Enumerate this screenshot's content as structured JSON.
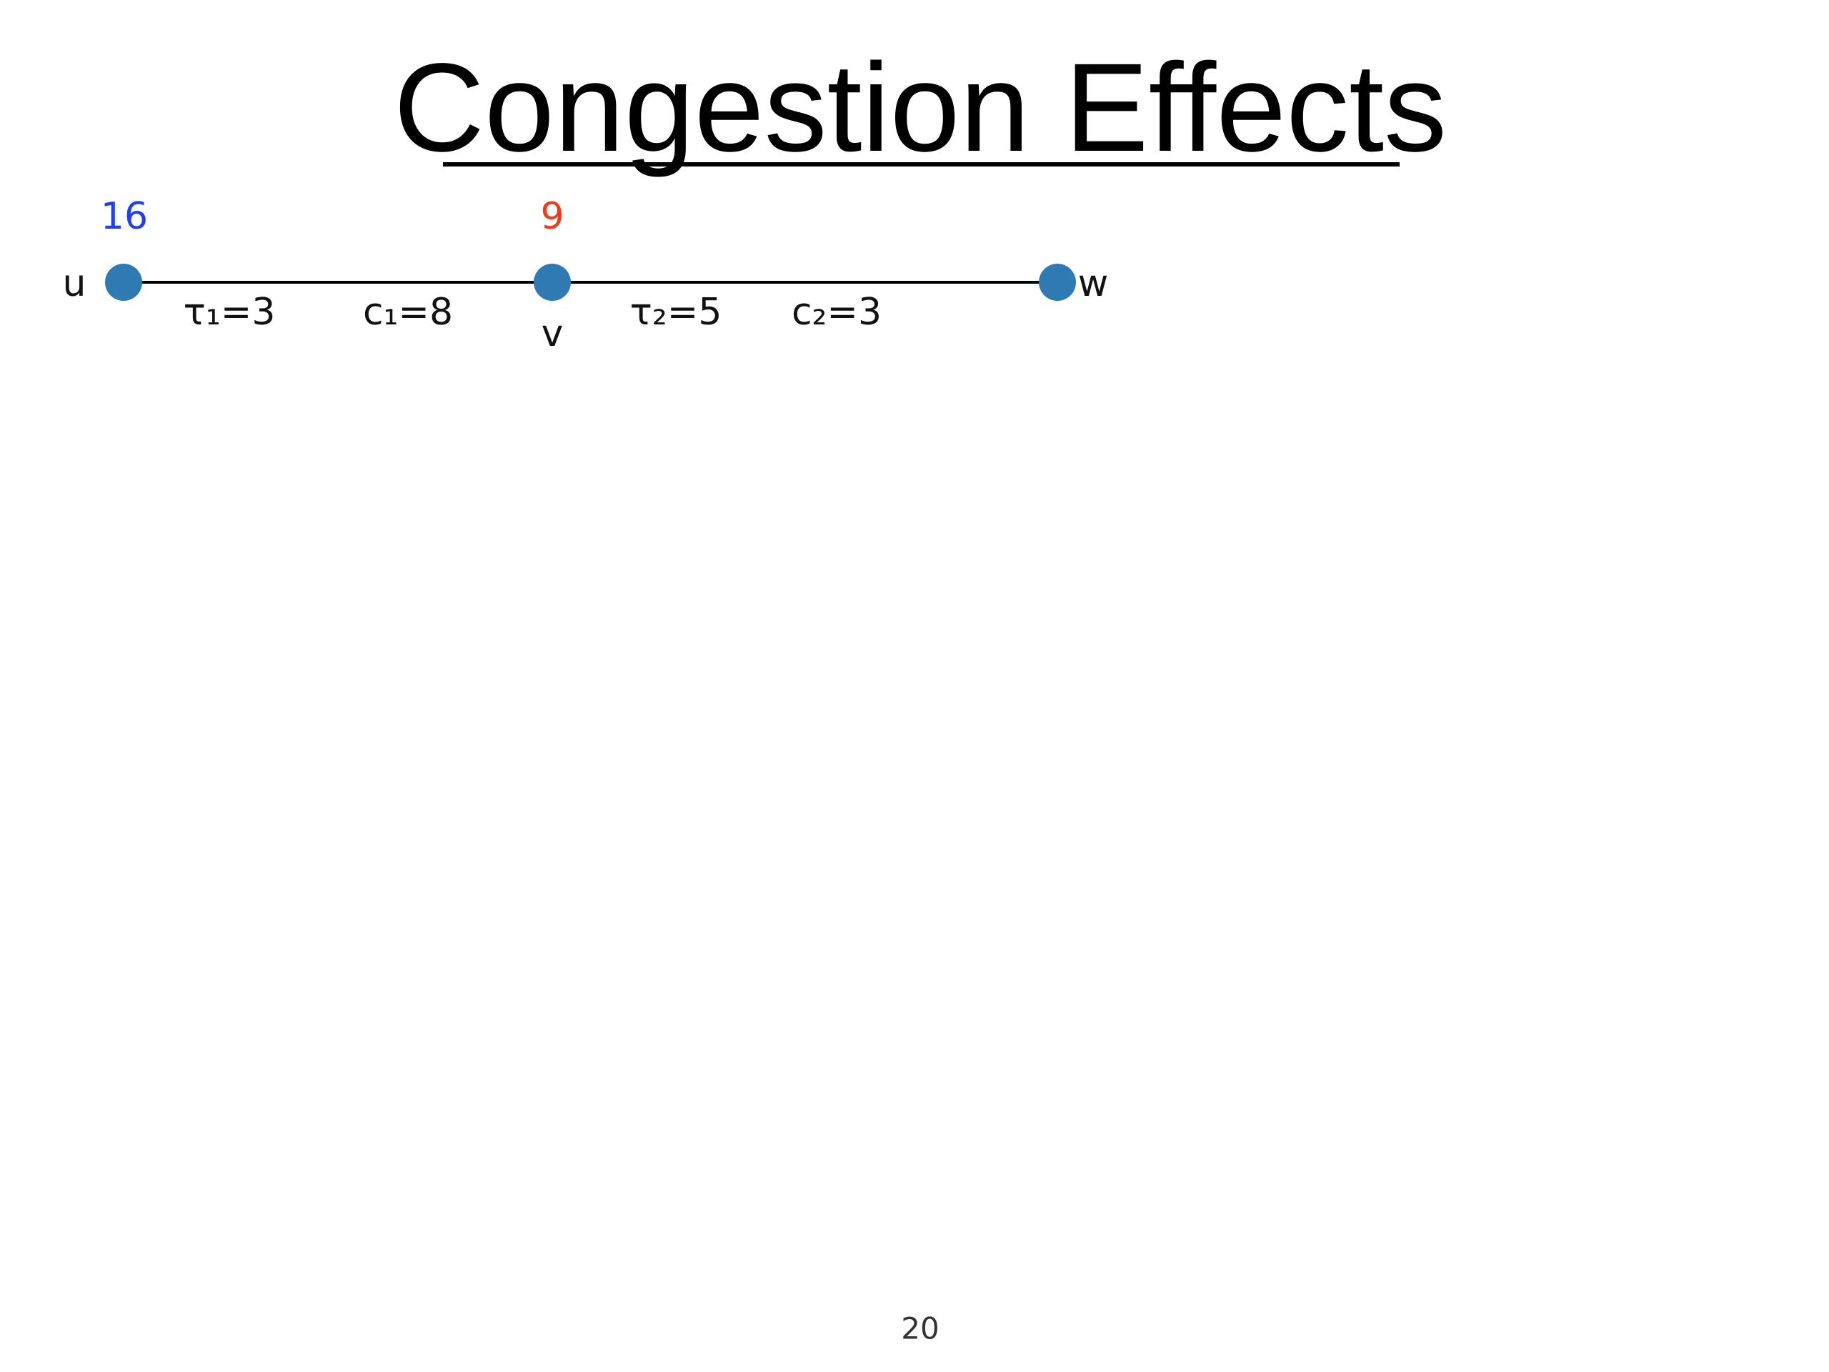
{
  "header": {
    "title": "Congestion Effects"
  },
  "nodes": [
    {
      "label": "u",
      "value": 16
    },
    {
      "label": "v",
      "value": 9
    },
    {
      "label": "w"
    }
  ],
  "edges": [
    {
      "from": "u",
      "to": "v",
      "labels": [
        "τ₁=3",
        "c₁=8"
      ]
    },
    {
      "from": "v",
      "to": "w",
      "labels": [
        "τ₂=5",
        "c₂=3"
      ]
    }
  ],
  "footer": {
    "page_number": 20
  }
}
